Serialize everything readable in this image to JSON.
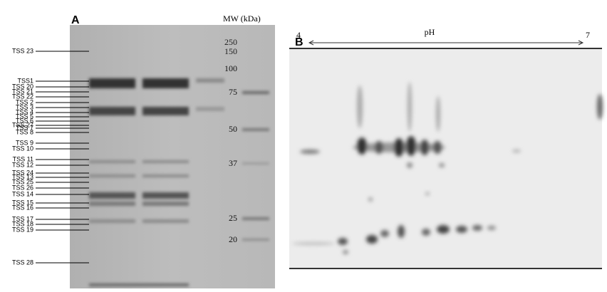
{
  "panel_a": {
    "label": "A",
    "mw_title": "MW (kDa)",
    "mw_markers": [
      "250",
      "150",
      "100",
      "75",
      "50",
      "37",
      "25",
      "20"
    ],
    "bands": [
      "TSS 23",
      "TSS1",
      "TSS 20",
      "TSS 21",
      "TSS 22",
      "TSS 2",
      "TSS 3",
      "TSS 4",
      "TSS 5",
      "TSS 6",
      "TSS 27",
      "TSS 7",
      "TSS 8",
      "TSS 9",
      "TSS 10",
      "TSS 11",
      "TSS 12",
      "TSS 24",
      "TSS 13",
      "TSS 25",
      "TSS 26",
      "TSS 14",
      "TSS 15",
      "TSS 16",
      "TSS 17",
      "TSS 18",
      "TSS 19",
      "TSS 28"
    ]
  },
  "panel_b": {
    "label": "B",
    "ph_low": "4",
    "ph_title": "pH",
    "ph_high": "7"
  }
}
